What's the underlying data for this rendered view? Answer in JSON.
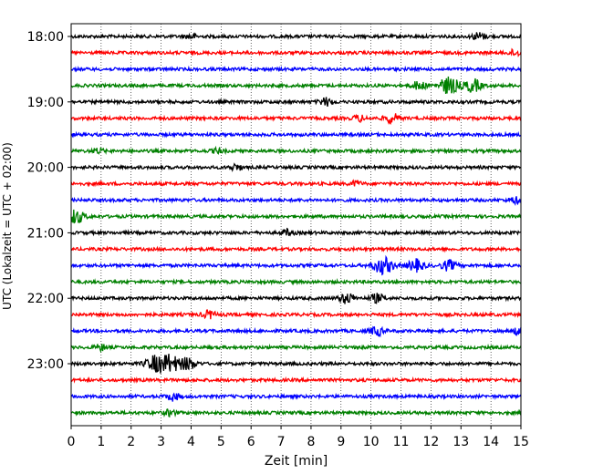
{
  "chart_data": {
    "type": "line",
    "title": "",
    "xlabel": "Zeit  [min]",
    "ylabel": "UTC (Lokalzeit = UTC + 02:00)",
    "xlim": [
      0,
      15
    ],
    "x_ticks": [
      "0",
      "1",
      "2",
      "3",
      "4",
      "5",
      "6",
      "7",
      "8",
      "9",
      "10",
      "11",
      "12",
      "13",
      "14",
      "15"
    ],
    "y_ticks": [
      "18:00",
      "19:00",
      "20:00",
      "21:00",
      "22:00",
      "23:00"
    ],
    "y_tick_rows": [
      0,
      4,
      8,
      12,
      16,
      20
    ],
    "grid": "vertical dotted",
    "legend": "none",
    "trace_colors": [
      "#000000",
      "#ff0000",
      "#0000ff",
      "#008000"
    ],
    "trace_count": 24,
    "series": [
      {
        "row": 0,
        "start": "18:00",
        "color": "#000000",
        "events": [
          {
            "x": 4.0,
            "amp": 0.3
          },
          {
            "x": 13.6,
            "amp": 0.45
          }
        ]
      },
      {
        "row": 1,
        "start": "18:15",
        "color": "#ff0000",
        "events": [
          {
            "x": 14.8,
            "amp": 0.35
          }
        ]
      },
      {
        "row": 2,
        "start": "18:30",
        "color": "#0000ff",
        "events": []
      },
      {
        "row": 3,
        "start": "18:45",
        "color": "#008000",
        "events": [
          {
            "x": 11.6,
            "amp": 0.5
          },
          {
            "x": 12.6,
            "amp": 1.0
          },
          {
            "x": 13.4,
            "amp": 0.75
          }
        ]
      },
      {
        "row": 4,
        "start": "19:00",
        "color": "#000000",
        "events": [
          {
            "x": 8.5,
            "amp": 0.45
          }
        ]
      },
      {
        "row": 5,
        "start": "19:15",
        "color": "#ff0000",
        "events": [
          {
            "x": 9.6,
            "amp": 0.35
          },
          {
            "x": 10.7,
            "amp": 0.55
          }
        ]
      },
      {
        "row": 6,
        "start": "19:30",
        "color": "#0000ff",
        "events": []
      },
      {
        "row": 7,
        "start": "19:45",
        "color": "#008000",
        "events": [
          {
            "x": 0.9,
            "amp": 0.3
          },
          {
            "x": 4.9,
            "amp": 0.3
          }
        ]
      },
      {
        "row": 8,
        "start": "20:00",
        "color": "#000000",
        "events": [
          {
            "x": 5.5,
            "amp": 0.35
          }
        ]
      },
      {
        "row": 9,
        "start": "20:15",
        "color": "#ff0000",
        "events": [
          {
            "x": 9.5,
            "amp": 0.3
          }
        ]
      },
      {
        "row": 10,
        "start": "20:30",
        "color": "#0000ff",
        "events": [
          {
            "x": 14.8,
            "amp": 0.35
          }
        ]
      },
      {
        "row": 11,
        "start": "20:45",
        "color": "#008000",
        "events": [
          {
            "x": 0.15,
            "amp": 0.8
          }
        ]
      },
      {
        "row": 12,
        "start": "21:00",
        "color": "#000000",
        "events": [
          {
            "x": 7.2,
            "amp": 0.35
          }
        ]
      },
      {
        "row": 13,
        "start": "21:15",
        "color": "#ff0000",
        "events": []
      },
      {
        "row": 14,
        "start": "21:30",
        "color": "#0000ff",
        "events": [
          {
            "x": 10.4,
            "amp": 1.0
          },
          {
            "x": 11.5,
            "amp": 0.7
          },
          {
            "x": 12.6,
            "amp": 0.6
          }
        ]
      },
      {
        "row": 15,
        "start": "21:45",
        "color": "#008000",
        "events": []
      },
      {
        "row": 16,
        "start": "22:00",
        "color": "#000000",
        "events": [
          {
            "x": 9.2,
            "amp": 0.6
          },
          {
            "x": 10.2,
            "amp": 0.5
          }
        ]
      },
      {
        "row": 17,
        "start": "22:15",
        "color": "#ff0000",
        "events": [
          {
            "x": 4.6,
            "amp": 0.45
          }
        ]
      },
      {
        "row": 18,
        "start": "22:30",
        "color": "#0000ff",
        "events": [
          {
            "x": 10.2,
            "amp": 0.5
          },
          {
            "x": 14.9,
            "amp": 0.4
          }
        ]
      },
      {
        "row": 19,
        "start": "22:45",
        "color": "#008000",
        "events": [
          {
            "x": 1.0,
            "amp": 0.35
          }
        ]
      },
      {
        "row": 20,
        "start": "23:00",
        "color": "#000000",
        "events": [
          {
            "x": 2.8,
            "amp": 0.9
          },
          {
            "x": 3.3,
            "amp": 1.0
          },
          {
            "x": 3.9,
            "amp": 0.7
          }
        ]
      },
      {
        "row": 21,
        "start": "23:15",
        "color": "#ff0000",
        "events": []
      },
      {
        "row": 22,
        "start": "23:30",
        "color": "#0000ff",
        "events": [
          {
            "x": 3.4,
            "amp": 0.45
          }
        ]
      },
      {
        "row": 23,
        "start": "23:45",
        "color": "#008000",
        "events": [
          {
            "x": 3.3,
            "amp": 0.35
          }
        ]
      }
    ]
  }
}
